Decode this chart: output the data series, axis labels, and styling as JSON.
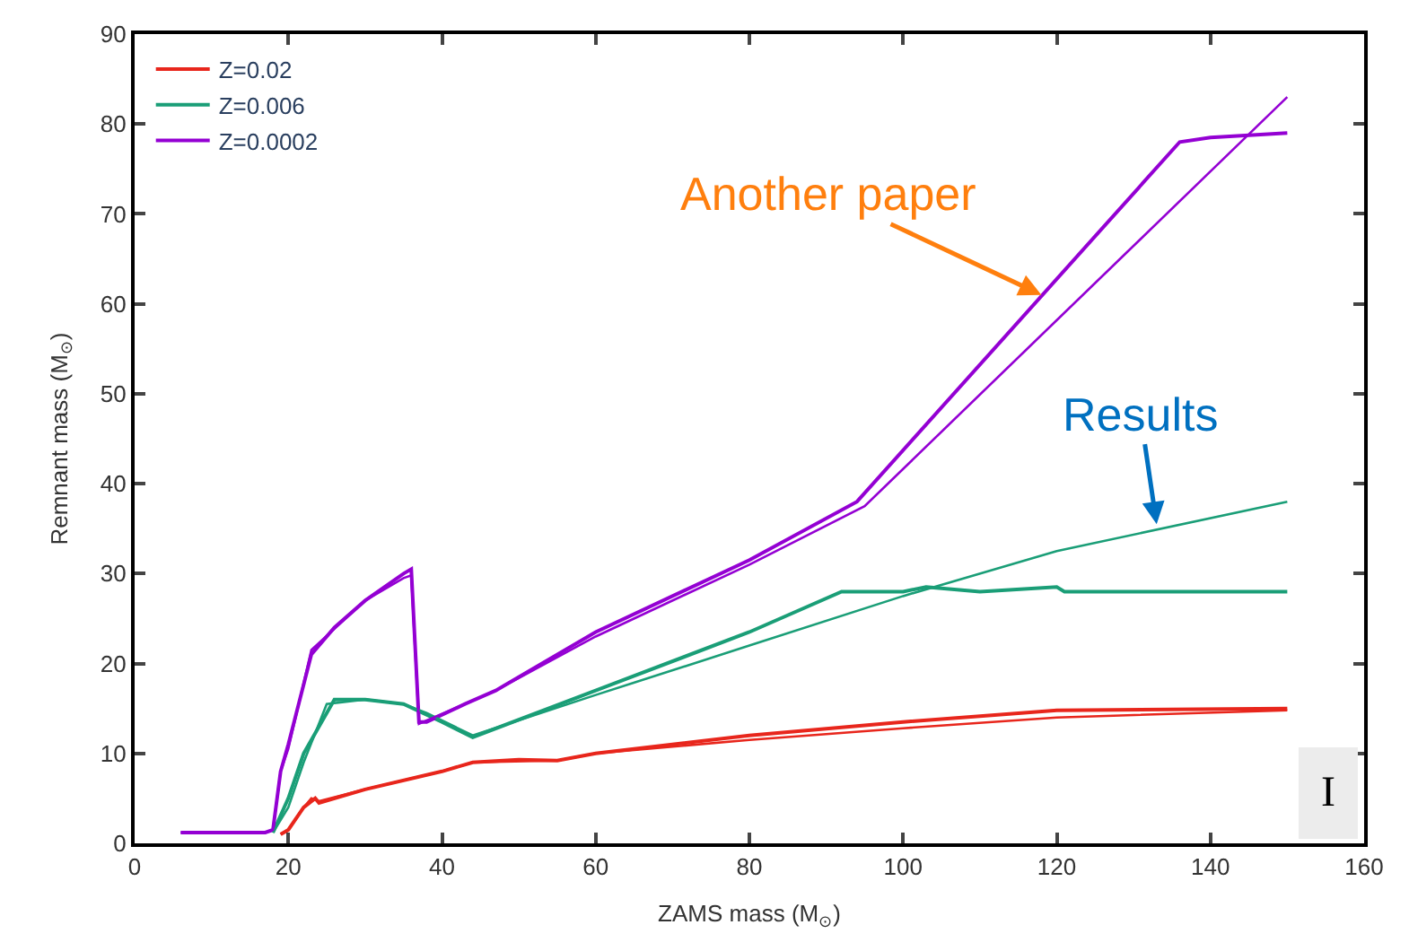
{
  "chart_data": {
    "type": "line",
    "xlabel": "ZAMS mass (M$_{⊙}$)",
    "ylabel": "Remnant mass (M$_{⊙}$)",
    "xlim": [
      0,
      160
    ],
    "ylim": [
      0,
      90
    ],
    "xticks": [
      0,
      20,
      40,
      60,
      80,
      100,
      120,
      140,
      160
    ],
    "yticks": [
      0,
      10,
      20,
      30,
      40,
      50,
      60,
      70,
      80,
      90
    ],
    "legend": "top left",
    "marker": "none",
    "line_style": "solid",
    "series": [
      {
        "name": "Z=0.02",
        "color": "#e8261c",
        "x": [
          19,
          20,
          22,
          23.5,
          24,
          30,
          40,
          44,
          50,
          55,
          60,
          80,
          100,
          120,
          150
        ],
        "values": [
          1,
          1.5,
          4,
          5,
          4.5,
          6,
          8,
          9,
          9.3,
          9.2,
          10,
          12,
          13.5,
          14.8,
          15
        ]
      },
      {
        "name": "Z=0.006",
        "color": "#1a9e77",
        "x": [
          18,
          20,
          22,
          26,
          30,
          35,
          40,
          44,
          60,
          80,
          92,
          100,
          103,
          110,
          120,
          121,
          150
        ],
        "values": [
          1.2,
          5,
          10,
          16,
          16,
          15.5,
          13.5,
          11.8,
          17,
          23.5,
          28,
          28,
          28.5,
          28,
          28.5,
          28,
          28
        ]
      },
      {
        "name": "Z=0.0002",
        "color": "#9400d3",
        "x": [
          6,
          17,
          18,
          19,
          20,
          23,
          26,
          30,
          35,
          36,
          37,
          38,
          43,
          47,
          60,
          80,
          94,
          136,
          140,
          150
        ],
        "values": [
          1.2,
          1.2,
          1.5,
          8,
          11,
          21,
          24,
          27,
          30,
          30.5,
          13.5,
          13.5,
          15.5,
          17,
          23.5,
          31.5,
          38,
          78,
          78.5,
          79
        ]
      },
      {
        "color": "#e8261c",
        "x": [
          19,
          20,
          22,
          23,
          24,
          30,
          40,
          44,
          55,
          60,
          80,
          100,
          120,
          150
        ],
        "values": [
          1,
          1.5,
          4,
          5,
          4.7,
          6,
          8,
          9,
          9.2,
          10,
          11.5,
          12.8,
          14,
          14.8
        ]
      },
      {
        "color": "#1a9e77",
        "x": [
          18,
          20,
          22,
          25,
          30,
          35,
          38,
          44,
          60,
          80,
          100,
          120,
          150
        ],
        "values": [
          1.2,
          4,
          9,
          15.5,
          16,
          15.5,
          14.5,
          12,
          16.5,
          22,
          27.5,
          32.5,
          38
        ]
      },
      {
        "color": "#9400d3",
        "x": [
          6,
          17,
          18,
          19,
          20,
          23,
          30,
          35,
          36,
          37,
          43,
          47,
          60,
          80,
          95,
          150
        ],
        "values": [
          1.2,
          1.2,
          1.5,
          8,
          10.5,
          21.5,
          27,
          29.5,
          29.8,
          13.3,
          15.5,
          17,
          23,
          31,
          37.5,
          83
        ]
      }
    ],
    "annotations": [
      {
        "text": "Another paper",
        "x": 118,
        "y": 61
      },
      {
        "text": "Results",
        "x": 133,
        "y": 35.5
      },
      "I"
    ]
  }
}
